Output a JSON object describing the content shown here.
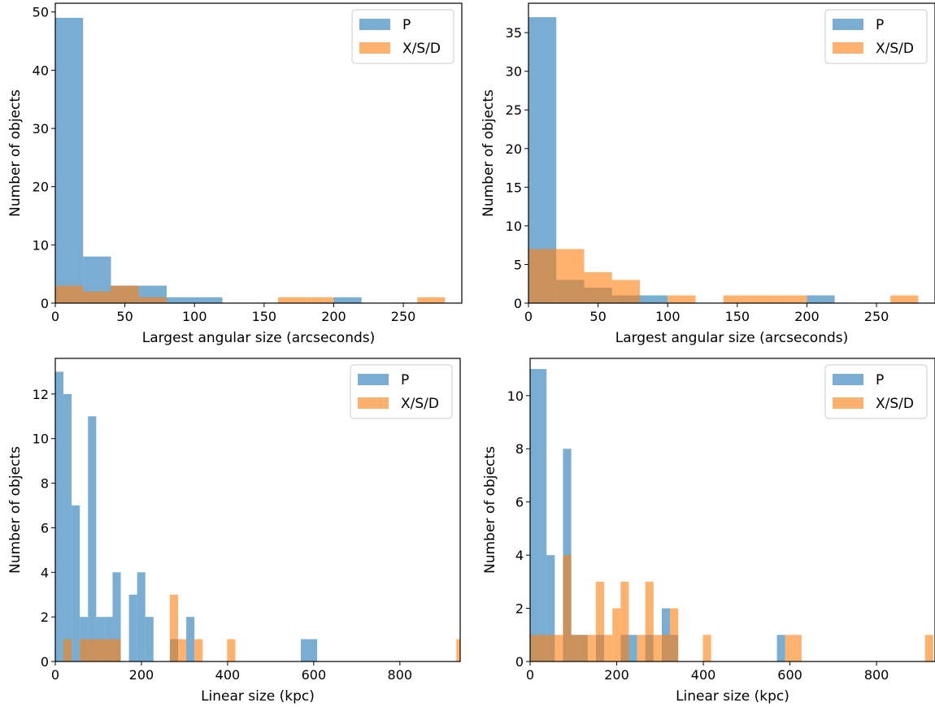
{
  "colors": {
    "P": "#1f77b4",
    "XSD": "#ff7f0e",
    "alpha": 0.6
  },
  "chart_data": [
    {
      "type": "bar",
      "subtype": "histogram",
      "xlabel": "Largest angular size (arcseconds)",
      "ylabel": "Number of objects",
      "xlim": [
        0,
        292
      ],
      "ylim": [
        0,
        51.5
      ],
      "xticks": [
        0,
        50,
        100,
        150,
        200,
        250
      ],
      "yticks": [
        0,
        10,
        20,
        30,
        40,
        50
      ],
      "legend": {
        "placement": "top-right",
        "entries": [
          "P",
          "X/S/D"
        ]
      },
      "series": [
        {
          "name": "P",
          "color": "#1f77b4",
          "bins": [
            [
              0,
              20,
              49
            ],
            [
              20,
              40,
              8
            ],
            [
              40,
              60,
              3
            ],
            [
              60,
              80,
              3
            ],
            [
              80,
              100,
              1
            ],
            [
              100,
              120,
              1
            ],
            [
              200,
              220,
              1
            ]
          ]
        },
        {
          "name": "X/S/D",
          "color": "#ff7f0e",
          "bins": [
            [
              0,
              20,
              3
            ],
            [
              20,
              40,
              2
            ],
            [
              40,
              60,
              3
            ],
            [
              60,
              80,
              1
            ],
            [
              160,
              180,
              1
            ],
            [
              180,
              200,
              1
            ],
            [
              260,
              280,
              1
            ]
          ]
        }
      ]
    },
    {
      "type": "bar",
      "subtype": "histogram",
      "xlabel": "Largest angular size (arcseconds)",
      "ylabel": "Number of objects",
      "xlim": [
        0,
        292
      ],
      "ylim": [
        0,
        38.8
      ],
      "xticks": [
        0,
        50,
        100,
        150,
        200,
        250
      ],
      "yticks": [
        0,
        5,
        10,
        15,
        20,
        25,
        30,
        35
      ],
      "legend": {
        "placement": "top-right",
        "entries": [
          "P",
          "X/S/D"
        ]
      },
      "series": [
        {
          "name": "P",
          "color": "#1f77b4",
          "bins": [
            [
              0,
              20,
              37
            ],
            [
              20,
              40,
              3
            ],
            [
              40,
              60,
              2
            ],
            [
              60,
              80,
              1
            ],
            [
              80,
              100,
              1
            ],
            [
              200,
              220,
              1
            ]
          ]
        },
        {
          "name": "X/S/D",
          "color": "#ff7f0e",
          "bins": [
            [
              0,
              20,
              7
            ],
            [
              20,
              40,
              7
            ],
            [
              40,
              60,
              4
            ],
            [
              60,
              80,
              3
            ],
            [
              100,
              120,
              1
            ],
            [
              140,
              160,
              1
            ],
            [
              160,
              180,
              1
            ],
            [
              180,
              200,
              1
            ],
            [
              260,
              280,
              1
            ]
          ]
        }
      ]
    },
    {
      "type": "bar",
      "subtype": "histogram",
      "xlabel": "Linear size (kpc)",
      "ylabel": "Number of objects",
      "xlim": [
        0,
        940
      ],
      "ylim": [
        0,
        13.6
      ],
      "xticks": [
        0,
        200,
        400,
        600,
        800
      ],
      "yticks": [
        0,
        2,
        4,
        6,
        8,
        10,
        12
      ],
      "legend": {
        "placement": "top-right",
        "entries": [
          "P",
          "X/S/D"
        ]
      },
      "series": [
        {
          "name": "P",
          "color": "#1f77b4",
          "bins": [
            [
              0,
              19,
              13
            ],
            [
              19,
              38,
              12
            ],
            [
              38,
              57,
              7
            ],
            [
              57,
              76,
              2
            ],
            [
              76,
              95,
              11
            ],
            [
              95,
              114,
              2
            ],
            [
              114,
              133,
              2
            ],
            [
              133,
              152,
              4
            ],
            [
              171,
              190,
              3
            ],
            [
              190,
              209,
              4
            ],
            [
              209,
              228,
              2
            ],
            [
              266,
              285,
              1
            ],
            [
              304,
              323,
              2
            ],
            [
              570,
              608,
              1
            ]
          ]
        },
        {
          "name": "X/S/D",
          "color": "#ff7f0e",
          "bins": [
            [
              19,
              38,
              1
            ],
            [
              57,
              76,
              1
            ],
            [
              76,
              95,
              1
            ],
            [
              95,
              114,
              1
            ],
            [
              114,
              133,
              1
            ],
            [
              133,
              152,
              1
            ],
            [
              266,
              285,
              3
            ],
            [
              285,
              304,
              1
            ],
            [
              323,
              342,
              1
            ],
            [
              399,
              418,
              1
            ],
            [
              931,
              950,
              1
            ]
          ]
        }
      ]
    },
    {
      "type": "bar",
      "subtype": "histogram",
      "xlabel": "Linear size (kpc)",
      "ylabel": "Number of objects",
      "xlim": [
        0,
        935
      ],
      "ylim": [
        0,
        11.4
      ],
      "xticks": [
        0,
        200,
        400,
        600,
        800
      ],
      "yticks": [
        0,
        2,
        4,
        6,
        8,
        10
      ],
      "legend": {
        "placement": "top-right",
        "entries": [
          "P",
          "X/S/D"
        ]
      },
      "series": [
        {
          "name": "P",
          "color": "#1f77b4",
          "bins": [
            [
              0,
              19,
              11
            ],
            [
              19,
              38,
              11
            ],
            [
              38,
              57,
              4
            ],
            [
              76,
              95,
              8
            ],
            [
              95,
              114,
              1
            ],
            [
              114,
              133,
              1
            ],
            [
              152,
              171,
              1
            ],
            [
              209,
              228,
              1
            ],
            [
              228,
              247,
              1
            ],
            [
              266,
              285,
              1
            ],
            [
              304,
              323,
              2
            ],
            [
              323,
              342,
              1
            ],
            [
              570,
              589,
              1
            ]
          ]
        },
        {
          "name": "X/S/D",
          "color": "#ff7f0e",
          "bins": [
            [
              0,
              19,
              1
            ],
            [
              19,
              38,
              1
            ],
            [
              38,
              57,
              1
            ],
            [
              57,
              76,
              1
            ],
            [
              76,
              95,
              4
            ],
            [
              95,
              114,
              1
            ],
            [
              114,
              133,
              1
            ],
            [
              133,
              152,
              1
            ],
            [
              152,
              171,
              3
            ],
            [
              171,
              190,
              1
            ],
            [
              190,
              209,
              2
            ],
            [
              209,
              228,
              3
            ],
            [
              247,
              266,
              1
            ],
            [
              266,
              285,
              3
            ],
            [
              285,
              304,
              1
            ],
            [
              304,
              323,
              1
            ],
            [
              323,
              342,
              2
            ],
            [
              399,
              418,
              1
            ],
            [
              589,
              608,
              1
            ],
            [
              608,
              627,
              1
            ],
            [
              912,
              931,
              1
            ]
          ]
        }
      ]
    }
  ]
}
